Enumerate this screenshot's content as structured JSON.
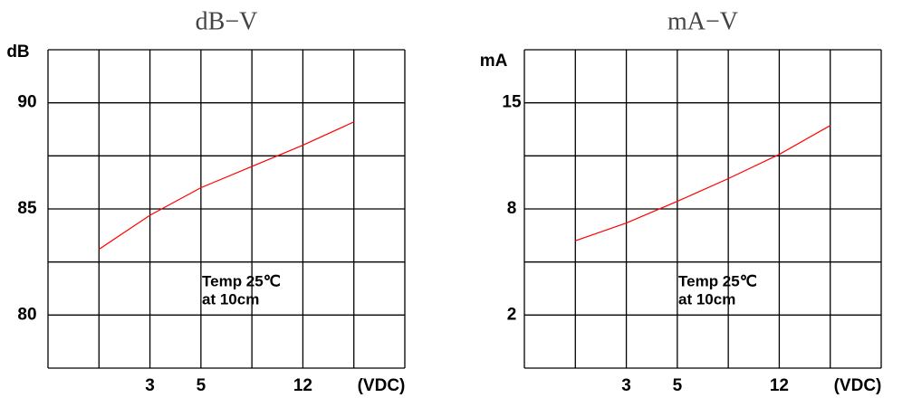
{
  "chart_data": [
    {
      "type": "line",
      "title": "dB−V",
      "y_label": "dB",
      "x_label": "(VDC)",
      "categories": [
        null,
        null,
        "3",
        "5",
        null,
        "12",
        null,
        null
      ],
      "values": [
        null,
        83.1,
        84.7,
        86.0,
        87.0,
        88.0,
        89.1,
        null
      ],
      "color": "#ff0000",
      "ylim": [
        77.5,
        92.5
      ],
      "yticks": [
        80,
        85,
        90
      ],
      "annotation": [
        "Temp 25℃",
        "at 10cm"
      ],
      "grid": true
    },
    {
      "type": "line",
      "title": "mA−V",
      "y_label": "mA",
      "x_label": "(VDC)",
      "categories": [
        null,
        null,
        "3",
        "5",
        null,
        "12",
        null,
        null
      ],
      "values": [
        null,
        6.2,
        7.2,
        8.5,
        10.0,
        11.6,
        13.5,
        null
      ],
      "color": "#ff0000",
      "ylim": [
        -1,
        18.5
      ],
      "yticks": [
        2,
        8,
        15
      ],
      "annotation": [
        "Temp 25℃",
        "at 10cm"
      ],
      "grid": true
    }
  ]
}
